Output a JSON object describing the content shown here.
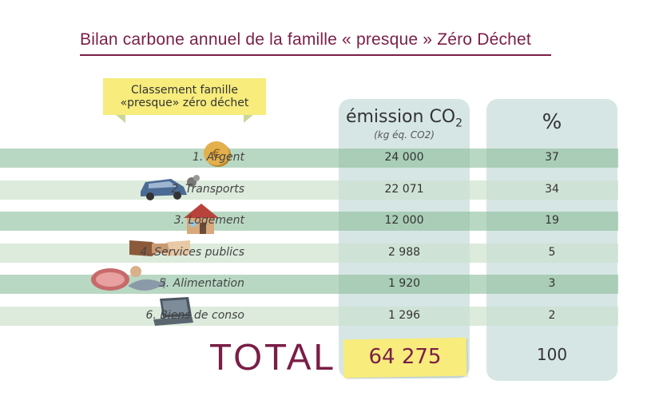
{
  "title": "Bilan carbone annuel de la famille « presque » Zéro Déchet",
  "ribbon": {
    "line1": "Classement famille",
    "line2": "«presque» zéro déchet"
  },
  "headers": {
    "emission": "émission CO",
    "emission_sub": "2",
    "unit": "(kg éq. CO2)",
    "percent": "%"
  },
  "chart_data": {
    "type": "table",
    "title": "Bilan carbone annuel de la famille « presque » Zéro Déchet",
    "columns": [
      "Classement famille «presque» zéro déchet",
      "émission CO2 (kg éq. CO2)",
      "%"
    ],
    "rows": [
      {
        "label": "1. Argent",
        "emission": "24 000",
        "percent": "37",
        "icon": "euro-coin-icon"
      },
      {
        "label": "2. Transports",
        "emission": "22 071",
        "percent": "34",
        "icon": "car-icon"
      },
      {
        "label": "3. Logement",
        "emission": "12 000",
        "percent": "19",
        "icon": "house-icon"
      },
      {
        "label": "4. Services publics",
        "emission": "2 988",
        "percent": "5",
        "icon": "handshake-icon"
      },
      {
        "label": "5. Alimentation",
        "emission": "1 920",
        "percent": "3",
        "icon": "food-icon"
      },
      {
        "label": "6. Biens de conso",
        "emission": "1 296",
        "percent": "2",
        "icon": "laptop-icon"
      }
    ],
    "total": {
      "label": "TOTAL :",
      "emission": "64 275",
      "percent": "100"
    }
  },
  "colors": {
    "title": "#7a1e47",
    "row_dark": "#b9d8c3",
    "row_light": "#dcebdc",
    "column": "#d6e6e5",
    "highlight": "#f7ec7c",
    "ribbon_tail": "#c9d69b"
  }
}
